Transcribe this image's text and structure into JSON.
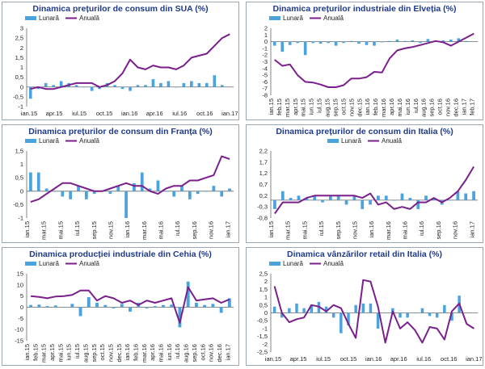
{
  "colors": {
    "bar": "#4aa3df",
    "line": "#7a1f8c",
    "title": "#1f3a8a"
  },
  "chart_data": [
    {
      "type": "bar+line",
      "title": "Dinamica prețurilor de consum din SUA (%)",
      "legend": [
        "Lunară",
        "Anuală"
      ],
      "legend_position": "top-left",
      "ylim": [
        -1,
        3
      ],
      "yticks": [
        "3",
        "2,5",
        "2",
        "1,5",
        "1",
        "0,5",
        "0",
        "-0,5",
        "-1"
      ],
      "ytick_values": [
        3,
        2.5,
        2,
        1.5,
        1,
        0.5,
        0,
        -0.5,
        -1
      ],
      "xtick_labels": [
        "ian.15",
        "apr.15",
        "iul.15",
        "oct.15",
        "ian.16",
        "apr.16",
        "iul.16",
        "oct.16",
        "ian.17"
      ],
      "xtick_rotate": false,
      "series": [
        {
          "name": "Lunară",
          "values": [
            -0.6,
            -0.1,
            0.2,
            0.1,
            0.3,
            0.2,
            0.1,
            0.0,
            -0.2,
            -0.1,
            0.2,
            0.1,
            -0.1,
            -0.2,
            0.1,
            0.1,
            0.4,
            0.2,
            0.3,
            0.0,
            0.2,
            0.3,
            0.2,
            0.2,
            0.6,
            0.1
          ]
        },
        {
          "name": "Anuală",
          "values": [
            -0.1,
            0.0,
            -0.1,
            -0.1,
            0.0,
            0.1,
            0.2,
            0.2,
            0.2,
            0.0,
            0.1,
            0.3,
            0.7,
            1.4,
            1.0,
            0.9,
            1.1,
            1.0,
            1.0,
            0.9,
            1.1,
            1.5,
            1.6,
            1.7,
            2.1,
            2.5,
            2.7
          ]
        }
      ]
    },
    {
      "type": "bar+line",
      "title": "Dinamica prețurilor industriale din Elveția (%)",
      "legend": [
        "Lunară",
        "Anuală"
      ],
      "legend_position": "top-left",
      "ylim": [
        -8,
        2
      ],
      "yticks": [
        "2",
        "1",
        "0",
        "-1",
        "-2",
        "-3",
        "-4",
        "-5",
        "-6",
        "-7",
        "-8"
      ],
      "ytick_values": [
        2,
        1,
        0,
        -1,
        -2,
        -3,
        -4,
        -5,
        -6,
        -7,
        -8
      ],
      "xtick_labels": [
        "ian.15",
        "feb.15",
        "mar.15",
        "apr.15",
        "mai.15",
        "iun.15",
        "iul.15",
        "aug.15",
        "sep.15",
        "oct.15",
        "nov.15",
        "dec.15",
        "ian.16",
        "feb.16",
        "mar.16",
        "apr.16",
        "mai.16",
        "iun.16",
        "iul.16",
        "aug.16",
        "sep.16",
        "oct.16",
        "nov.16",
        "dec.16",
        "ian.17",
        "feb.17"
      ],
      "xtick_rotate": true,
      "series": [
        {
          "name": "Lunară",
          "values": [
            -0.6,
            -1.5,
            -0.5,
            -0.2,
            -2.0,
            -0.2,
            -0.3,
            -0.2,
            -0.6,
            -0.2,
            0.1,
            -0.3,
            -0.5,
            -0.6,
            -0.1,
            0.1,
            0.3,
            0.1,
            0.2,
            -0.2,
            0.4,
            0.1,
            0.2,
            0.3,
            0.5,
            0.1
          ]
        },
        {
          "name": "Anuală",
          "values": [
            -2.7,
            -3.6,
            -3.4,
            -5.0,
            -6.0,
            -6.1,
            -6.4,
            -6.8,
            -6.8,
            -6.5,
            -5.5,
            -5.5,
            -5.3,
            -4.5,
            -4.6,
            -2.5,
            -1.3,
            -1.0,
            -0.8,
            -0.5,
            -0.2,
            0.1,
            -0.1,
            -0.6,
            0.0,
            0.6,
            1.2
          ]
        }
      ]
    },
    {
      "type": "bar+line",
      "title": "Dinamica prețurilor de consum din Franța (%)",
      "legend": [
        "Lunară",
        "Anuală"
      ],
      "legend_position": "top-left",
      "ylim": [
        -1,
        1.5
      ],
      "yticks": [
        "1,5",
        "1",
        "0,5",
        "0",
        "-0,5",
        "-1"
      ],
      "ytick_values": [
        1.5,
        1,
        0.5,
        0,
        -0.5,
        -1
      ],
      "xtick_labels": [
        "ian.15",
        "mar.15",
        "mai.15",
        "iul.15",
        "sep.15",
        "nov.15",
        "ian.16",
        "mar.16",
        "mai.16",
        "iul.16",
        "sep.16",
        "nov.16",
        "ian.17"
      ],
      "xtick_rotate": true,
      "series": [
        {
          "name": "Lunară",
          "values": [
            0.7,
            0.7,
            0.1,
            0.0,
            -0.2,
            -0.3,
            0.2,
            -0.3,
            -0.1,
            0.0,
            -0.1,
            0.2,
            -1.0,
            0.3,
            0.7,
            0.1,
            0.4,
            0.0,
            -0.2,
            0.2,
            -0.3,
            -0.1,
            0.0,
            0.2,
            -0.2,
            0.1
          ]
        },
        {
          "name": "Anuală",
          "values": [
            -0.4,
            -0.3,
            -0.1,
            0.1,
            0.3,
            0.3,
            0.2,
            0.1,
            0.0,
            0.0,
            0.1,
            0.2,
            0.3,
            0.2,
            0.2,
            0.0,
            -0.1,
            0.1,
            0.2,
            0.2,
            0.4,
            0.4,
            0.5,
            0.6,
            1.3,
            1.2
          ]
        }
      ]
    },
    {
      "type": "bar+line",
      "title": "Dinamica prețurilor de consum din Italia (%)",
      "legend": [
        "Lunară",
        "Anuală"
      ],
      "legend_position": "top-center",
      "ylim": [
        -0.8,
        2.2
      ],
      "yticks": [
        "2,2",
        "1,7",
        "1,2",
        "0,7",
        "0,2",
        "-0,3",
        "-0,8"
      ],
      "ytick_values": [
        2.2,
        1.7,
        1.2,
        0.7,
        0.2,
        -0.3,
        -0.8
      ],
      "xtick_labels": [
        "ian.15",
        "mar.15",
        "mai.15",
        "iul.15",
        "sep.15",
        "nov.15",
        "ian.16",
        "mar.16",
        "mai.16",
        "iul.16",
        "sep.16",
        "nov.16",
        "ian.17"
      ],
      "xtick_rotate": true,
      "series": [
        {
          "name": "Lunară",
          "values": [
            -0.4,
            0.4,
            0.1,
            0.2,
            0.1,
            0.2,
            -0.1,
            0.2,
            0.2,
            -0.2,
            0.2,
            -0.4,
            -0.2,
            0.2,
            0.2,
            0.0,
            0.3,
            0.1,
            -0.4,
            0.2,
            0.1,
            -0.2,
            0.0,
            0.4,
            0.3,
            0.4
          ]
        },
        {
          "name": "Anuală",
          "values": [
            -0.6,
            -0.1,
            -0.1,
            -0.1,
            0.1,
            0.2,
            0.2,
            0.2,
            0.2,
            0.2,
            0.2,
            0.1,
            0.3,
            -0.2,
            -0.1,
            -0.4,
            -0.3,
            -0.4,
            -0.1,
            -0.1,
            0.1,
            -0.1,
            0.1,
            0.4,
            0.9,
            1.5
          ]
        }
      ]
    },
    {
      "type": "bar+line",
      "title": "Dinamica producției industriale din Cehia (%)",
      "legend": [
        "Lunară",
        "Anuală"
      ],
      "legend_position": "top-left",
      "ylim": [
        -15,
        15
      ],
      "yticks": [
        "15",
        "10",
        "5",
        "0",
        "-5",
        "-10",
        "-15"
      ],
      "ytick_values": [
        15,
        10,
        5,
        0,
        -5,
        -10,
        -15
      ],
      "xtick_labels": [
        "ian.15",
        "feb.15",
        "mar.15",
        "apr.15",
        "mai.15",
        "iun.15",
        "iul.15",
        "aug.15",
        "sep.15",
        "oct.15",
        "nov.15",
        "dec.15",
        "ian.16",
        "feb.16",
        "mar.16",
        "apr.16",
        "mai.16",
        "iun.16",
        "iul.16",
        "aug.16",
        "sep.16",
        "oct.16",
        "nov.16",
        "dec.16",
        "ian.17"
      ],
      "xtick_rotate": true,
      "series": [
        {
          "name": "Lunară",
          "values": [
            1.0,
            1.2,
            0.5,
            0.8,
            0.0,
            1.5,
            -4.0,
            4.5,
            2.0,
            1.0,
            -0.5,
            1.5,
            -2.0,
            2.0,
            -0.5,
            0.5,
            1.0,
            1.2,
            -9.0,
            11.5,
            2.0,
            1.0,
            1.5,
            -2.5,
            4.0
          ]
        },
        {
          "name": "Anuală",
          "values": [
            5.0,
            4.6,
            4.0,
            4.8,
            5.0,
            5.5,
            7.5,
            7.5,
            3.0,
            5.0,
            4.0,
            2.0,
            3.0,
            1.0,
            3.0,
            2.0,
            3.0,
            4.0,
            -7.0,
            9.0,
            3.0,
            3.5,
            4.0,
            2.0,
            3.5
          ]
        }
      ]
    },
    {
      "type": "bar+line",
      "title": "Dinamica vânzărilor retail din Italia (%)",
      "legend": [
        "Lunară",
        "Anuală"
      ],
      "legend_position": "top-left",
      "ylim": [
        -2.5,
        2.5
      ],
      "yticks": [
        "2,5",
        "2",
        "1,5",
        "1",
        "0,5",
        "0",
        "-0,5",
        "-1",
        "-1,5",
        "-2",
        "-2,5"
      ],
      "ytick_values": [
        2.5,
        2,
        1.5,
        1,
        0.5,
        0,
        -0.5,
        -1,
        -1.5,
        -2,
        -2.5
      ],
      "xtick_labels": [
        "ian.15",
        "apr.15",
        "iul.15",
        "oct.15",
        "ian.16",
        "apr.16",
        "iul.16",
        "oct.16",
        "ian.17"
      ],
      "xtick_rotate": false,
      "series": [
        {
          "name": "Lunară",
          "values": [
            0.4,
            -0.3,
            0.3,
            0.6,
            0.3,
            0.5,
            0.7,
            0.4,
            -0.3,
            -1.3,
            -0.8,
            0.5,
            0.6,
            0.6,
            -1.0,
            0.0,
            0.3,
            -0.3,
            -0.3,
            0.0,
            0.3,
            -0.2,
            -0.3,
            0.5,
            -0.5,
            1.1
          ]
        },
        {
          "name": "Anuală",
          "values": [
            1.7,
            0.0,
            -0.6,
            -0.4,
            -0.3,
            0.5,
            0.4,
            0.1,
            0.5,
            0.3,
            -0.7,
            -1.6,
            2.1,
            2.0,
            0.4,
            -1.9,
            0.1,
            -1.0,
            -0.6,
            -1.1,
            -1.9,
            -0.9,
            -1.0,
            -1.7,
            0.1,
            0.6,
            -0.7,
            -1.0
          ]
        }
      ]
    }
  ]
}
